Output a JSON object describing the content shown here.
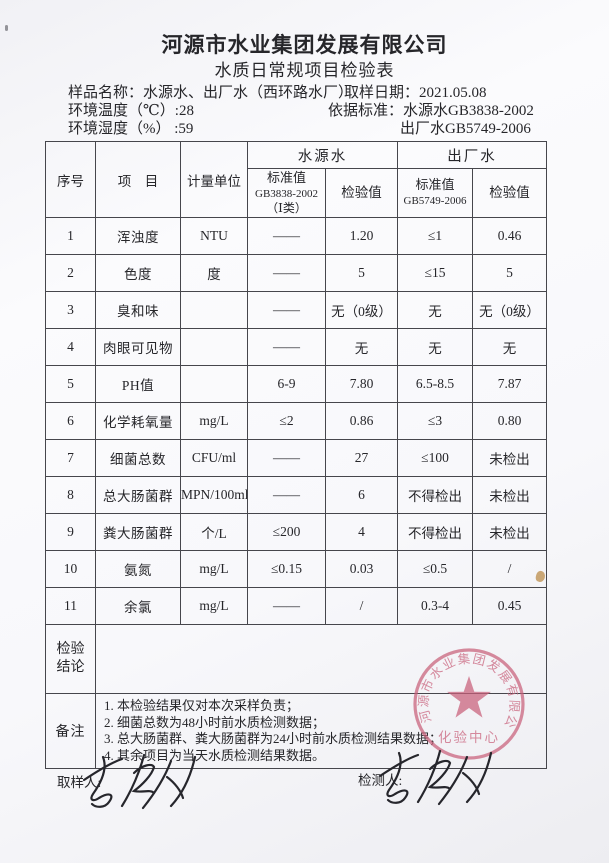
{
  "header": {
    "company_name": "河源市水业集团发展有限公司",
    "form_title": "水质日常规项目检验表"
  },
  "info": {
    "sample_name_label": "样品名称：",
    "sample_name": "水源水、出厂水（西环路水厂）",
    "sampling_date_label": "取样日期：",
    "sampling_date": "2021.05.08",
    "env_temp_label": "环境温度（℃）:",
    "env_temp": "28",
    "standard_label": "依据标准：",
    "standard_source": "水源水GB3838-2002",
    "env_humidity_label": "环境湿度（%） :",
    "env_humidity": "59",
    "standard_factory": "出厂水GB5749-2006"
  },
  "table": {
    "headers": {
      "no": "序号",
      "item": "项　目",
      "unit": "计量单位",
      "source_group": "水源水",
      "factory_group": "出厂水",
      "source_std_line1": "标准值",
      "source_std_line2": "GB3838-2002",
      "source_std_line3": "（Ⅰ类）",
      "source_check": "检验值",
      "factory_std_line1": "标准值",
      "factory_std_line2": "GB5749-2006",
      "factory_check": "检验值"
    },
    "rows": [
      {
        "no": "1",
        "item": "浑浊度",
        "unit": "NTU",
        "src_std": "——",
        "src_val": "1.20",
        "fac_std": "≤1",
        "fac_val": "0.46"
      },
      {
        "no": "2",
        "item": "色度",
        "unit": "度",
        "src_std": "——",
        "src_val": "5",
        "fac_std": "≤15",
        "fac_val": "5"
      },
      {
        "no": "3",
        "item": "臭和味",
        "unit": "",
        "src_std": "——",
        "src_val": "无（0级）",
        "fac_std": "无",
        "fac_val": "无（0级）"
      },
      {
        "no": "4",
        "item": "肉眼可见物",
        "unit": "",
        "src_std": "——",
        "src_val": "无",
        "fac_std": "无",
        "fac_val": "无"
      },
      {
        "no": "5",
        "item": "PH值",
        "unit": "",
        "src_std": "6-9",
        "src_val": "7.80",
        "fac_std": "6.5-8.5",
        "fac_val": "7.87"
      },
      {
        "no": "6",
        "item": "化学耗氧量",
        "unit": "mg/L",
        "src_std": "≤2",
        "src_val": "0.86",
        "fac_std": "≤3",
        "fac_val": "0.80"
      },
      {
        "no": "7",
        "item": "细菌总数",
        "unit": "CFU/ml",
        "src_std": "——",
        "src_val": "27",
        "fac_std": "≤100",
        "fac_val": "未检出"
      },
      {
        "no": "8",
        "item": "总大肠菌群",
        "unit": "MPN/100ml",
        "src_std": "——",
        "src_val": "6",
        "fac_std": "不得检出",
        "fac_val": "未检出"
      },
      {
        "no": "9",
        "item": "粪大肠菌群",
        "unit": "个/L",
        "src_std": "≤200",
        "src_val": "4",
        "fac_std": "不得检出",
        "fac_val": "未检出"
      },
      {
        "no": "10",
        "item": "氨氮",
        "unit": "mg/L",
        "src_std": "≤0.15",
        "src_val": "0.03",
        "fac_std": "≤0.5",
        "fac_val": "/"
      },
      {
        "no": "11",
        "item": "余氯",
        "unit": "mg/L",
        "src_std": "——",
        "src_val": "/",
        "fac_std": "0.3-4",
        "fac_val": "0.45"
      }
    ]
  },
  "conclusion": {
    "label_line1": "检验",
    "label_line2": "结论",
    "value": ""
  },
  "remarks": {
    "label": "备注",
    "lines": [
      "1. 本检验结果仅对本次采样负责；",
      "2. 细菌总数为48小时前水质检测数据；",
      "3. 总大肠菌群、粪大肠菌群为24小时前水质检测结果数据；",
      "4. 其余项目为当天水质检测结果数据。"
    ]
  },
  "footer": {
    "sampler_label": "取样人:",
    "tester_label": "检测人:"
  },
  "stamp": {
    "ring_text": "河源市水业集团发展有限公司",
    "center_text": "化验中心",
    "color": "#c9607a"
  }
}
